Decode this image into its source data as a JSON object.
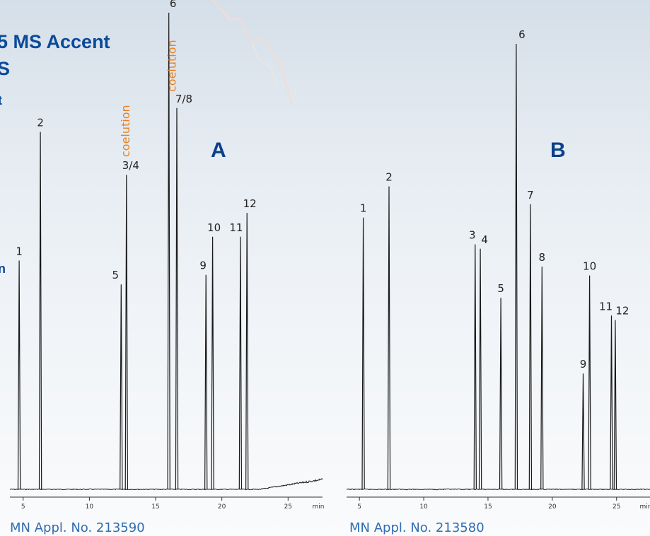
{
  "header": {
    "title_line1": "5 MS Accent",
    "title_line2": "S",
    "side_mark_1": "t",
    "side_mark_2": "n"
  },
  "footers": {
    "left": "MN Appl. No. 213590",
    "right": "MN Appl. No. 213580"
  },
  "colors": {
    "title": "#0a4a9a",
    "panel_label": "#0c3f8a",
    "annotation": "#e8801f",
    "trace": "#1a1a1a",
    "footer": "#2f6db3"
  },
  "chart_data": [
    {
      "type": "line",
      "panel_label": "A",
      "xlabel": "min",
      "xlim": [
        4,
        27.6
      ],
      "ylim": [
        0,
        100
      ],
      "xticks": [
        5,
        10,
        15,
        20,
        25
      ],
      "peaks": [
        {
          "label": "1",
          "x": 4.7,
          "height": 48
        },
        {
          "label": "2",
          "x": 6.3,
          "height": 75
        },
        {
          "label": "5",
          "x": 12.4,
          "height": 43
        },
        {
          "label": "3/4",
          "x": 12.8,
          "height": 66
        },
        {
          "label": "6",
          "x": 16.0,
          "height": 100
        },
        {
          "label": "7/8",
          "x": 16.6,
          "height": 80
        },
        {
          "label": "9",
          "x": 18.8,
          "height": 45
        },
        {
          "label": "10",
          "x": 19.3,
          "height": 53
        },
        {
          "label": "11",
          "x": 21.4,
          "height": 53
        },
        {
          "label": "12",
          "x": 21.9,
          "height": 58
        }
      ],
      "annotations": [
        {
          "text": "coelution",
          "x": 12.8
        },
        {
          "text": "coelution",
          "x": 16.3
        }
      ]
    },
    {
      "type": "line",
      "panel_label": "B",
      "xlabel": "min",
      "xlim": [
        4,
        27.6
      ],
      "ylim": [
        0,
        100
      ],
      "xticks": [
        5,
        10,
        15,
        20,
        25
      ],
      "peaks": [
        {
          "label": "1",
          "x": 5.3,
          "height": 61
        },
        {
          "label": "2",
          "x": 7.3,
          "height": 68
        },
        {
          "label": "3",
          "x": 14.0,
          "height": 55
        },
        {
          "label": "4",
          "x": 14.4,
          "height": 54
        },
        {
          "label": "5",
          "x": 16.0,
          "height": 43
        },
        {
          "label": "6",
          "x": 17.2,
          "height": 100
        },
        {
          "label": "7",
          "x": 18.3,
          "height": 64
        },
        {
          "label": "8",
          "x": 19.2,
          "height": 50
        },
        {
          "label": "9",
          "x": 22.4,
          "height": 26
        },
        {
          "label": "10",
          "x": 22.9,
          "height": 48
        },
        {
          "label": "11",
          "x": 24.6,
          "height": 39
        },
        {
          "label": "12",
          "x": 24.9,
          "height": 38
        }
      ]
    }
  ]
}
